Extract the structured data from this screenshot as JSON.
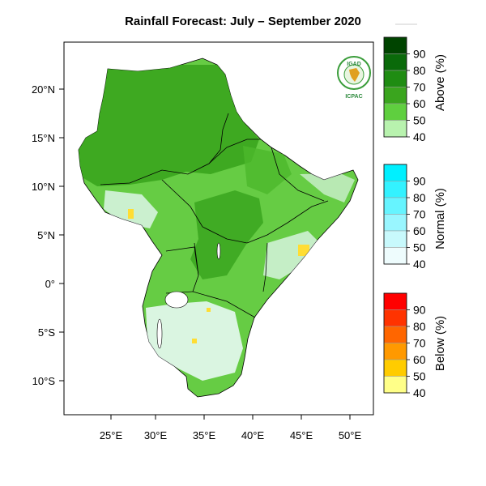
{
  "title": "Rainfall Forecast:  July – September 2020",
  "map": {
    "lon_ticks": [
      "25°E",
      "30°E",
      "35°E",
      "40°E",
      "45°E",
      "50°E"
    ],
    "lat_ticks": [
      "20°N",
      "15°N",
      "10°N",
      "5°N",
      "0°",
      "5°S",
      "10°S"
    ],
    "ocean_color": "#ffffff",
    "land_fill": "#66cc44"
  },
  "logo": {
    "top_text": "IGAD",
    "bottom_text": "ICPAC"
  },
  "legend": {
    "above": {
      "title": "Above (%)",
      "labels": [
        "90",
        "80",
        "70",
        "60",
        "50",
        "40"
      ],
      "colors": [
        "#004400",
        "#0a6a0a",
        "#1f8c12",
        "#3aa51e",
        "#5fcf3f",
        "#b8f2ae"
      ]
    },
    "normal": {
      "title": "Normal (%)",
      "labels": [
        "90",
        "80",
        "70",
        "60",
        "50",
        "40"
      ],
      "colors": [
        "#00f0ff",
        "#33f2ff",
        "#66f4ff",
        "#99f6ff",
        "#c8f9fc",
        "#eefcfd"
      ]
    },
    "below": {
      "title": "Below (%)",
      "labels": [
        "90",
        "80",
        "70",
        "60",
        "50",
        "40"
      ],
      "colors": [
        "#ff0000",
        "#ff3300",
        "#ff6600",
        "#ff9900",
        "#ffcc00",
        "#ffff88"
      ]
    }
  }
}
